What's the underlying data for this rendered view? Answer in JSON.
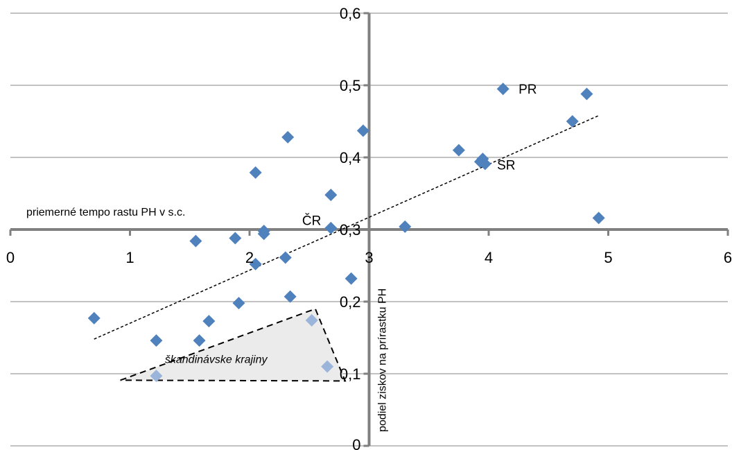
{
  "chart_data": {
    "type": "scatter",
    "xlim": [
      0,
      6
    ],
    "ylim": [
      0,
      0.6
    ],
    "x_ticks": [
      "0",
      "1",
      "2",
      "3",
      "4",
      "5",
      "6"
    ],
    "y_ticks": [
      "0",
      "0,1",
      "0,2",
      "0,3",
      "0,4",
      "0,5",
      "0,6"
    ],
    "x_axis_crosses_y_at": 0.3,
    "y_axis_crosses_x_at": 3.0,
    "xlabel": "priemerné tempo rastu PH v s.c.",
    "ylabel": "podiel ziskov na prírastku PH",
    "grid": "horizontal",
    "marker": "diamond",
    "colors": {
      "marker": "#4F81BD",
      "marker_highlight": "#9BB5DA",
      "axis": "#808080",
      "grid": "#868686",
      "region_fill": "#EBEBEB"
    },
    "points": [
      {
        "x": 0.7,
        "y": 0.177
      },
      {
        "x": 1.22,
        "y": 0.146
      },
      {
        "x": 1.55,
        "y": 0.284
      },
      {
        "x": 1.58,
        "y": 0.146
      },
      {
        "x": 1.66,
        "y": 0.173
      },
      {
        "x": 1.88,
        "y": 0.288
      },
      {
        "x": 1.91,
        "y": 0.198
      },
      {
        "x": 2.05,
        "y": 0.379
      },
      {
        "x": 2.05,
        "y": 0.252
      },
      {
        "x": 2.12,
        "y": 0.298
      },
      {
        "x": 2.12,
        "y": 0.294
      },
      {
        "x": 2.3,
        "y": 0.261
      },
      {
        "x": 2.32,
        "y": 0.428
      },
      {
        "x": 2.34,
        "y": 0.207
      },
      {
        "x": 2.68,
        "y": 0.348
      },
      {
        "x": 2.68,
        "y": 0.302
      },
      {
        "x": 2.85,
        "y": 0.232
      },
      {
        "x": 2.95,
        "y": 0.437
      },
      {
        "x": 3.3,
        "y": 0.304
      },
      {
        "x": 3.75,
        "y": 0.41
      },
      {
        "x": 3.93,
        "y": 0.394
      },
      {
        "x": 3.95,
        "y": 0.398
      },
      {
        "x": 3.97,
        "y": 0.391
      },
      {
        "x": 4.12,
        "y": 0.495
      },
      {
        "x": 4.7,
        "y": 0.45
      },
      {
        "x": 4.82,
        "y": 0.488
      },
      {
        "x": 4.92,
        "y": 0.316
      }
    ],
    "highlighted_points": [
      {
        "x": 1.22,
        "y": 0.097
      },
      {
        "x": 2.52,
        "y": 0.174
      },
      {
        "x": 2.65,
        "y": 0.11
      }
    ],
    "annotations": [
      {
        "text": "PR",
        "x": 4.25,
        "y": 0.495
      },
      {
        "text": "SR",
        "x": 4.07,
        "y": 0.39
      },
      {
        "text": "ČR",
        "x": 2.44,
        "y": 0.313
      }
    ],
    "trendline": {
      "style": "dotted",
      "x": [
        0.7,
        4.92
      ],
      "y": [
        0.148,
        0.458
      ]
    },
    "region": {
      "label": "škandinávske krajiny",
      "polygon": [
        [
          0.92,
          0.091
        ],
        [
          2.55,
          0.19
        ],
        [
          2.8,
          0.09
        ]
      ]
    }
  }
}
